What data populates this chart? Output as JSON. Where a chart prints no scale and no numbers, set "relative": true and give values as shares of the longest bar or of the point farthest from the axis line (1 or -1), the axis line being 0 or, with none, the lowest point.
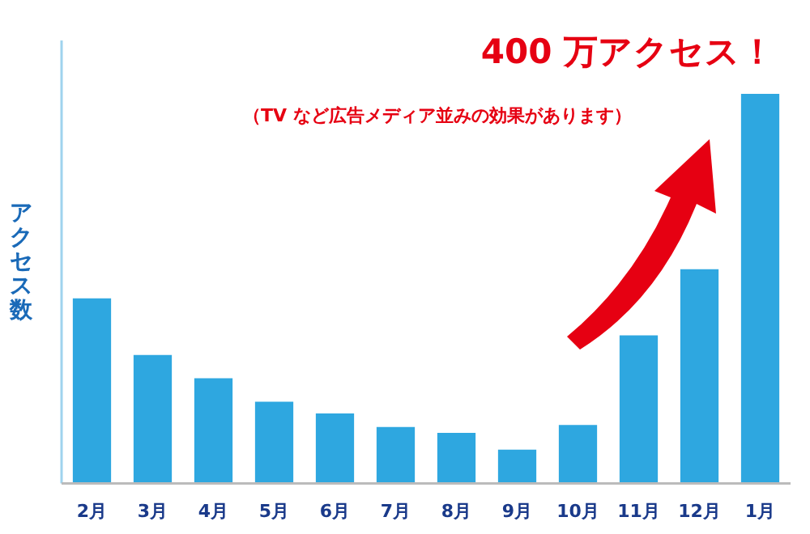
{
  "chart_data": {
    "type": "bar",
    "relative": true,
    "ylabel": "アクセス数",
    "categories": [
      "2月",
      "3月",
      "4月",
      "5月",
      "6月",
      "7月",
      "8月",
      "9月",
      "10月",
      "11月",
      "12月",
      "1月"
    ],
    "values": [
      0.475,
      0.33,
      0.27,
      0.21,
      0.18,
      0.145,
      0.13,
      0.087,
      0.15,
      0.38,
      0.55,
      1
    ],
    "color": "#2ea7e0",
    "annotations": [
      "400 万アクセス！",
      "（TV など広告メディア並みの効果があります）"
    ],
    "grid": false,
    "legend": false
  }
}
